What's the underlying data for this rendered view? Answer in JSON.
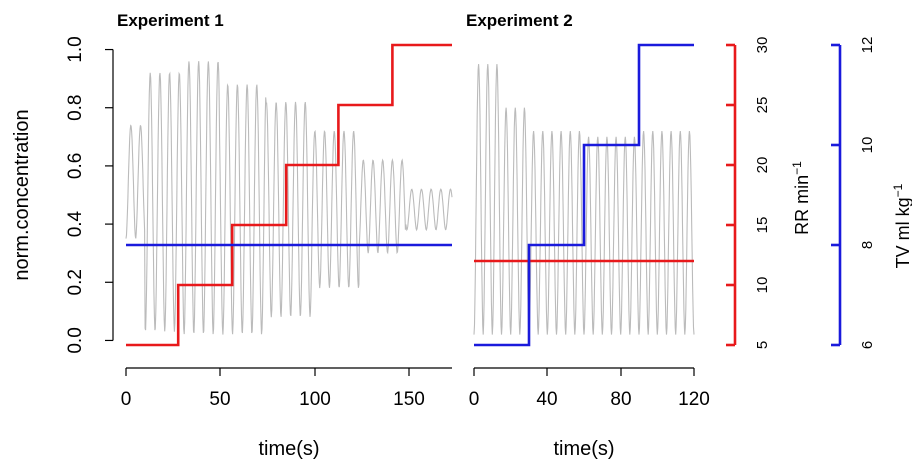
{
  "y_axis_label": "norm.concentration",
  "chart_data": [
    {
      "type": "line",
      "title": "Experiment 1",
      "xlabel": "time(s)",
      "ylabel": "norm.concentration",
      "xlim": [
        0,
        175
      ],
      "ylim": [
        -0.05,
        1.05
      ],
      "xticks": [
        "0",
        "50",
        "100",
        "150"
      ],
      "yticks": [
        "0.0",
        "0.2",
        "0.4",
        "0.6",
        "0.8",
        "1.0"
      ],
      "series": [
        {
          "color": "#bbbbbb",
          "axis": "left",
          "kind": "oscillation",
          "period_s": 5.2,
          "segments": [
            {
              "t0": 0,
              "t1": 10,
              "high": 0.74,
              "low": 0.35
            },
            {
              "t0": 10,
              "t1": 30,
              "high": 0.92,
              "low": 0.03
            },
            {
              "t0": 30,
              "t1": 50,
              "high": 0.96,
              "low": 0.02
            },
            {
              "t0": 50,
              "t1": 75,
              "high": 0.88,
              "low": 0.02
            },
            {
              "t0": 75,
              "t1": 100,
              "high": 0.82,
              "low": 0.08
            },
            {
              "t0": 100,
              "t1": 125,
              "high": 0.72,
              "low": 0.18
            },
            {
              "t0": 125,
              "t1": 150,
              "high": 0.62,
              "low": 0.3
            },
            {
              "t0": 150,
              "t1": 175,
              "high": 0.52,
              "low": 0.38
            }
          ]
        },
        {
          "color": "#e8191b",
          "axis": "RR",
          "kind": "step",
          "x": [
            0,
            28,
            28,
            57,
            57,
            86,
            86,
            114,
            114,
            143,
            143,
            175
          ],
          "y": [
            5,
            5,
            10,
            10,
            15,
            15,
            20,
            20,
            25,
            25,
            30,
            30
          ]
        },
        {
          "color": "#1a1adc",
          "axis": "TV",
          "kind": "step",
          "x": [
            0,
            175
          ],
          "y": [
            8,
            8
          ]
        }
      ]
    },
    {
      "type": "line",
      "title": "Experiment 2",
      "xlabel": "time(s)",
      "xlim": [
        0,
        120
      ],
      "ylim": [
        -0.05,
        1.05
      ],
      "xticks": [
        "0",
        "40",
        "80",
        "120"
      ],
      "series": [
        {
          "color": "#bbbbbb",
          "axis": "left",
          "kind": "oscillation",
          "period_s": 5.0,
          "segments": [
            {
              "t0": 0,
              "t1": 15,
              "high": 0.95,
              "low": 0.02
            },
            {
              "t0": 15,
              "t1": 30,
              "high": 0.8,
              "low": 0.02
            },
            {
              "t0": 30,
              "t1": 60,
              "high": 0.72,
              "low": 0.02
            },
            {
              "t0": 60,
              "t1": 90,
              "high": 0.7,
              "low": 0.02
            },
            {
              "t0": 90,
              "t1": 120,
              "high": 0.72,
              "low": 0.02
            }
          ]
        },
        {
          "color": "#e8191b",
          "axis": "RR",
          "kind": "step",
          "x": [
            0,
            120
          ],
          "y": [
            12,
            12
          ]
        },
        {
          "color": "#1a1adc",
          "axis": "TV",
          "kind": "step",
          "x": [
            0,
            30,
            30,
            60,
            60,
            90,
            90,
            120
          ],
          "y": [
            6,
            6,
            8,
            8,
            10,
            10,
            12,
            12
          ]
        }
      ]
    }
  ],
  "right_axes": [
    {
      "id": "RR",
      "label": "RR min",
      "superscript": "−1",
      "color": "#e8191b",
      "range": [
        5,
        30
      ],
      "ticks": [
        "5",
        "10",
        "15",
        "20",
        "25",
        "30"
      ]
    },
    {
      "id": "TV",
      "label": "TV ml  kg",
      "superscript": "−1",
      "color": "#1a1adc",
      "range": [
        6,
        12
      ],
      "ticks": [
        "6",
        "8",
        "10",
        "12"
      ]
    }
  ]
}
